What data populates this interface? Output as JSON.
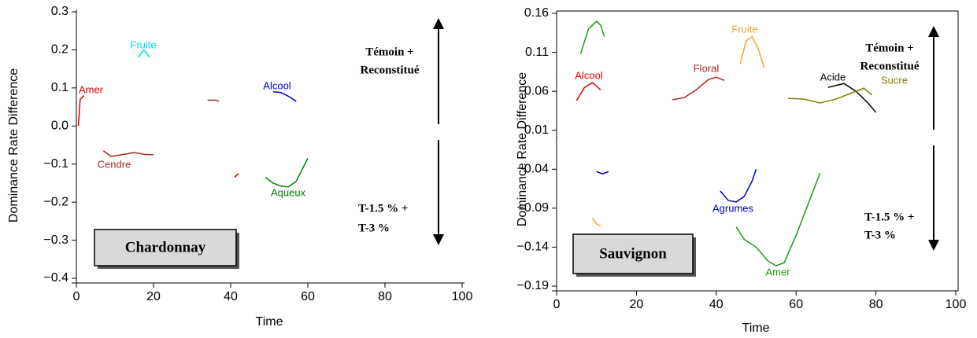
{
  "chart_data": [
    {
      "type": "line",
      "title": "Chardonnay",
      "xlabel": "Time",
      "ylabel": "Dominance Rate Difference",
      "xlim": [
        0,
        100
      ],
      "xticks": [
        0,
        20,
        40,
        60,
        80,
        100
      ],
      "ylim": [
        -0.4,
        0.3
      ],
      "yticks": [
        0.3,
        0.2,
        0.1,
        {
          "value": 0,
          "label": "0.0"
        },
        {
          "value": -0.1,
          "label": "−0.1"
        },
        {
          "value": -0.2,
          "label": "−0.2"
        },
        {
          "value": -0.3,
          "label": "−0.3"
        },
        {
          "value": -0.4,
          "label": "−0.4"
        }
      ],
      "annotations": [
        "Témoin  +",
        "Reconstitué",
        "T-1.5 % +",
        "T-3 %"
      ],
      "series": [
        {
          "name": "Amer",
          "color": "#e00000",
          "x": [
            0.5,
            1,
            2
          ],
          "values": [
            0.0,
            0.07,
            0.08
          ]
        },
        {
          "name": "Fruite",
          "color": "#00dede",
          "x": [
            16,
            17.5,
            19
          ],
          "values": [
            0.18,
            0.2,
            0.18
          ]
        },
        {
          "name": "Cendre",
          "color": "#a52a2a",
          "x": [
            7,
            9,
            12,
            15,
            18,
            20
          ],
          "values": [
            -0.065,
            -0.08,
            -0.075,
            -0.07,
            -0.075,
            -0.075
          ]
        },
        {
          "color": "#a52a2a",
          "x": [
            34,
            36,
            37
          ],
          "values": [
            0.068,
            0.068,
            0.065
          ]
        },
        {
          "color": "#e00000",
          "x": [
            41,
            42
          ],
          "values": [
            -0.135,
            -0.125
          ]
        },
        {
          "name": "Alcool",
          "color": "#0000cc",
          "x": [
            51,
            53,
            55,
            57
          ],
          "values": [
            0.09,
            0.088,
            0.078,
            0.065
          ]
        },
        {
          "name": "Aqueux",
          "color": "#008000",
          "x": [
            49,
            51,
            53,
            55,
            57,
            59,
            60
          ],
          "values": [
            -0.135,
            -0.15,
            -0.158,
            -0.16,
            -0.145,
            -0.105,
            -0.085
          ]
        }
      ]
    },
    {
      "type": "line",
      "title": "Sauvignon",
      "xlabel": "Time",
      "ylabel": "Dominance Rate Difference",
      "xlim": [
        0,
        100
      ],
      "xticks": [
        0,
        20,
        40,
        60,
        80,
        100
      ],
      "ylim": [
        -0.19,
        0.16
      ],
      "yticks": [
        0.16,
        0.11,
        0.06,
        0.01,
        {
          "value": -0.04,
          "label": "−0.04"
        },
        {
          "value": -0.09,
          "label": "−0.09"
        },
        {
          "value": -0.14,
          "label": "−0.14"
        },
        {
          "value": -0.19,
          "label": "−0.19"
        }
      ],
      "annotations": [
        "Témoin  +",
        "Reconstitué",
        "T-1.5 % +",
        "T-3 %"
      ],
      "series": [
        {
          "color": "#1a9a1a",
          "x": [
            6,
            8,
            10,
            11,
            12
          ],
          "values": [
            0.108,
            0.14,
            0.15,
            0.145,
            0.13
          ]
        },
        {
          "name": "Alcool",
          "color": "#e00000",
          "x": [
            5,
            7,
            9,
            11
          ],
          "values": [
            0.048,
            0.065,
            0.071,
            0.062
          ]
        },
        {
          "name": "Floral",
          "color": "#b22222",
          "x": [
            29,
            32,
            35,
            38,
            40,
            42
          ],
          "values": [
            0.049,
            0.052,
            0.062,
            0.075,
            0.078,
            0.074
          ]
        },
        {
          "name": "Fruite",
          "color": "#f0a830",
          "x": [
            46,
            47.5,
            49,
            50.5,
            52
          ],
          "values": [
            0.095,
            0.125,
            0.13,
            0.115,
            0.09
          ]
        },
        {
          "name": "Acide",
          "color": "#000000",
          "x": [
            68,
            72,
            75,
            78,
            80
          ],
          "values": [
            0.065,
            0.07,
            0.06,
            0.045,
            0.033
          ]
        },
        {
          "name": "Sucre",
          "color": "#808000",
          "x": [
            58,
            62,
            66,
            70,
            74,
            77,
            79
          ],
          "values": [
            0.051,
            0.05,
            0.045,
            0.05,
            0.058,
            0.064,
            0.055
          ]
        },
        {
          "color": "#808000",
          "x": [
            0,
            0.3
          ],
          "values": [
            0.001,
            0.001
          ]
        },
        {
          "color": "#0000cc",
          "x": [
            10,
            11.5,
            13
          ],
          "values": [
            -0.043,
            -0.046,
            -0.043
          ]
        },
        {
          "name": "Agrumes",
          "color": "#0000cc",
          "x": [
            41,
            43,
            45,
            47,
            49,
            50
          ],
          "values": [
            -0.068,
            -0.08,
            -0.082,
            -0.075,
            -0.055,
            -0.04
          ]
        },
        {
          "color": "#f0a830",
          "x": [
            9,
            10,
            11
          ],
          "values": [
            -0.103,
            -0.11,
            -0.113
          ]
        },
        {
          "name": "Amer",
          "color": "#1a9a1a",
          "x": [
            45,
            47,
            50,
            53,
            55,
            57,
            60,
            63,
            66
          ],
          "values": [
            -0.114,
            -0.13,
            -0.14,
            -0.158,
            -0.164,
            -0.16,
            -0.125,
            -0.085,
            -0.045
          ]
        }
      ]
    }
  ]
}
